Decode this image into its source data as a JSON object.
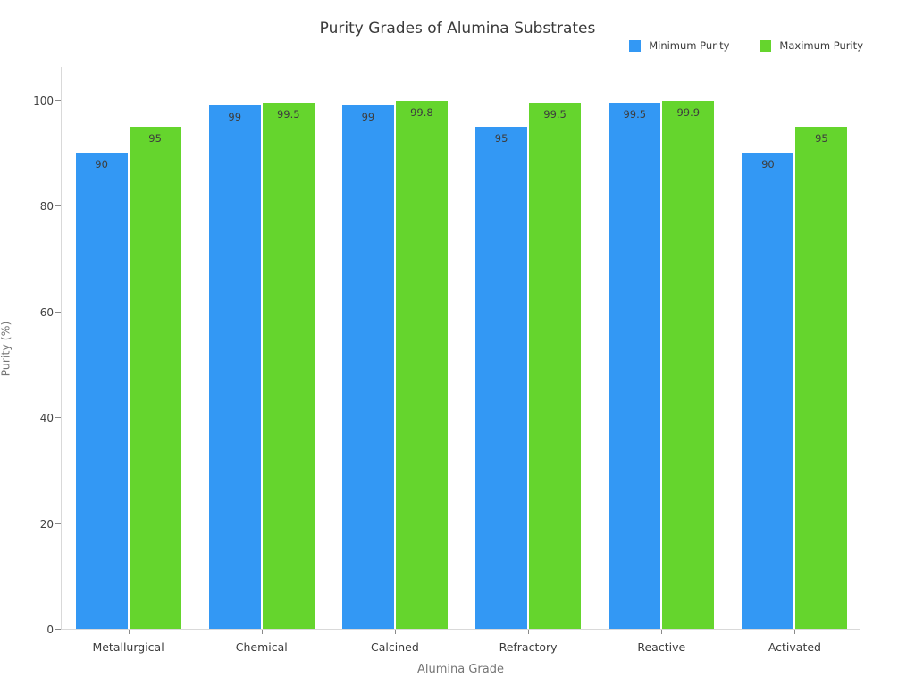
{
  "chart_data": {
    "type": "bar",
    "title": "Purity Grades of Alumina Substrates",
    "xlabel": "Alumina Grade",
    "ylabel": "Purity (%)",
    "categories": [
      "Metallurgical",
      "Chemical",
      "Calcined",
      "Refractory",
      "Reactive",
      "Activated"
    ],
    "series": [
      {
        "name": "Minimum Purity",
        "color": "#3398f4",
        "values": [
          90,
          99,
          99,
          95,
          99.5,
          90
        ]
      },
      {
        "name": "Maximum Purity",
        "color": "#65d52d",
        "values": [
          95,
          99.5,
          99.8,
          99.5,
          99.9,
          95
        ]
      }
    ],
    "ylim": [
      0,
      106.4
    ],
    "yticks": [
      0,
      20,
      40,
      60,
      80,
      100
    ],
    "grid": false,
    "legend_position": "top-right",
    "value_labels": "inside-top"
  }
}
